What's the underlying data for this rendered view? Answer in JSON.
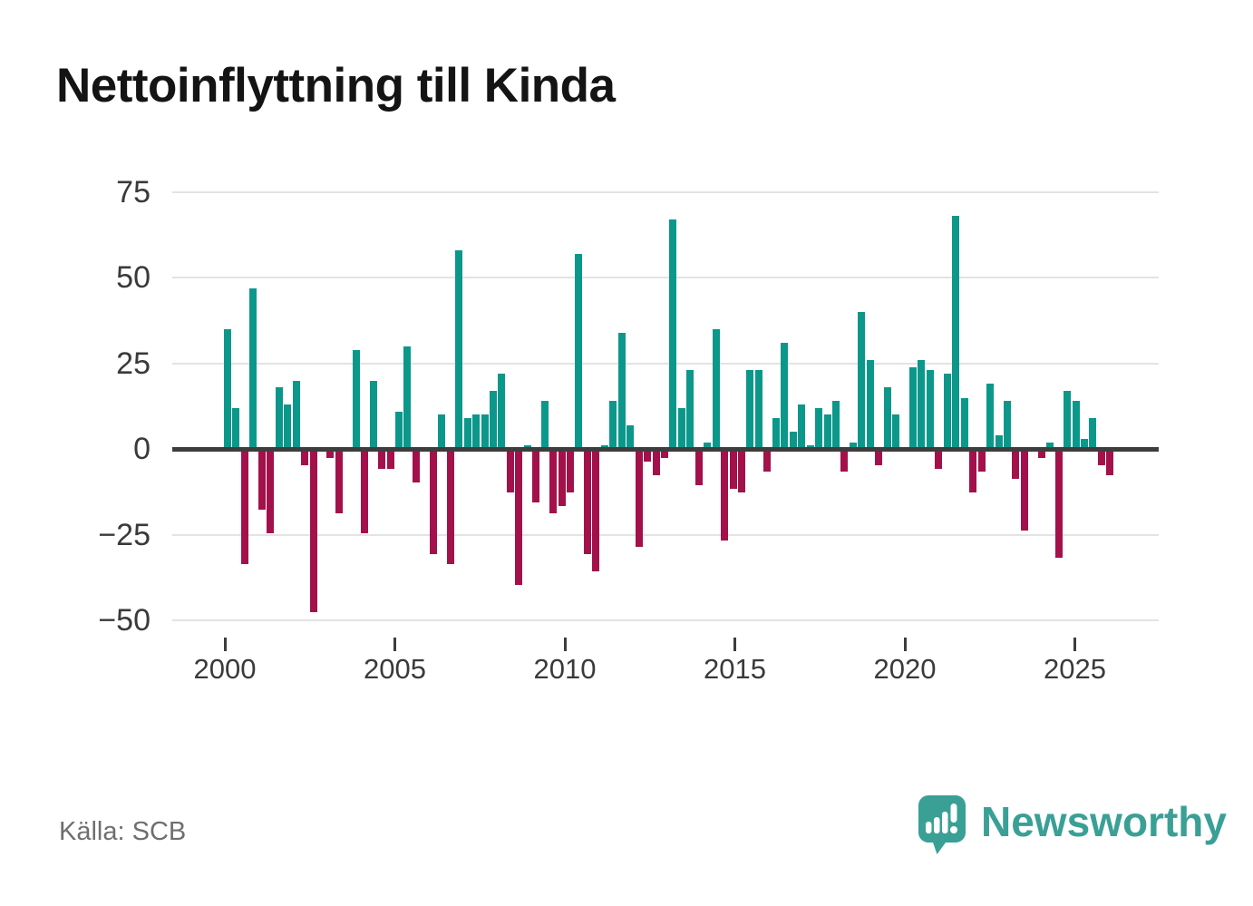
{
  "title": "Nettoinflyttning till Kinda",
  "source_label": "Källa: SCB",
  "branding": {
    "name": "Newsworthy",
    "icon": "newsworthy-speech-bubble-chart-icon"
  },
  "colors": {
    "positive_bar": "#0b988b",
    "negative_bar": "#a3114b",
    "brand_teal": "#3aa096",
    "gridline": "#e3e3e3",
    "zero_line": "#3d3d3d",
    "axis_text": "#3a3a3a",
    "title_text": "#141414",
    "source_text": "#6f6f6f",
    "background": "#ffffff"
  },
  "chart_data": {
    "type": "bar",
    "title": "Nettoinflyttning till Kinda",
    "x_unit": "quarter",
    "start_period": "2000 Q1",
    "end_period": "2025 Q4",
    "values": [
      35,
      12,
      -33,
      47,
      -17,
      -24,
      18,
      13,
      20,
      -4,
      -47,
      0,
      -2,
      -18,
      0,
      29,
      -24,
      20,
      -5,
      -5,
      11,
      30,
      -9,
      0,
      -30,
      10,
      -33,
      58,
      9,
      10,
      10,
      17,
      22,
      -12,
      -39,
      1,
      -15,
      14,
      -18,
      -16,
      -12,
      57,
      -30,
      -35,
      1,
      14,
      34,
      7,
      -28,
      -3,
      -7,
      -2,
      67,
      12,
      23,
      -10,
      2,
      35,
      -26,
      -11,
      -12,
      23,
      23,
      -6,
      9,
      31,
      5,
      13,
      1,
      12,
      10,
      14,
      -6,
      2,
      40,
      26,
      -4,
      18,
      10,
      0,
      24,
      26,
      23,
      -5,
      22,
      68,
      15,
      -12,
      -6,
      19,
      4,
      14,
      -8,
      -23,
      0,
      -2,
      2,
      -31,
      17,
      14,
      3,
      9,
      -4,
      -7
    ],
    "yticks": [
      75,
      50,
      25,
      0,
      -25,
      -50
    ],
    "ylim": [
      -50,
      75
    ],
    "xticks": [
      {
        "label": "2000",
        "index": 0
      },
      {
        "label": "2005",
        "index": 20
      },
      {
        "label": "2010",
        "index": 40
      },
      {
        "label": "2015",
        "index": 60
      },
      {
        "label": "2020",
        "index": 80
      },
      {
        "label": "2025",
        "index": 100
      }
    ],
    "grid": true,
    "legend": "none"
  }
}
